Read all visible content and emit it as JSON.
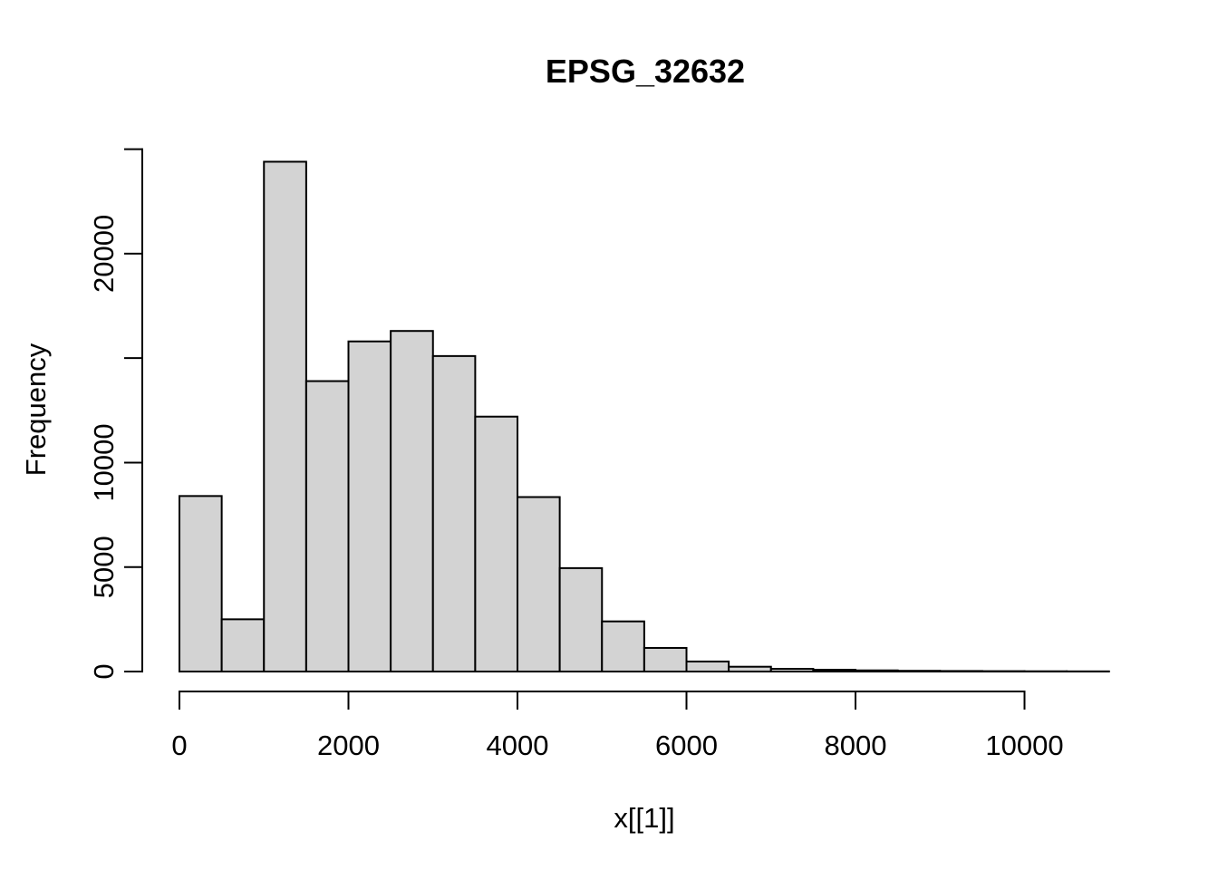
{
  "title": "EPSG_32632",
  "chart_data": {
    "type": "bar",
    "subtype": "histogram",
    "title": "EPSG_32632",
    "xlabel": "x[[1]]",
    "ylabel": "Frequency",
    "bin_start": 0,
    "bin_width": 500,
    "bins": [
      {
        "range": [
          0,
          500
        ],
        "count": 8400
      },
      {
        "range": [
          500,
          1000
        ],
        "count": 2500
      },
      {
        "range": [
          1000,
          1500
        ],
        "count": 24400
      },
      {
        "range": [
          1500,
          2000
        ],
        "count": 13900
      },
      {
        "range": [
          2000,
          2500
        ],
        "count": 15800
      },
      {
        "range": [
          2500,
          3000
        ],
        "count": 16300
      },
      {
        "range": [
          3000,
          3500
        ],
        "count": 15100
      },
      {
        "range": [
          3500,
          4000
        ],
        "count": 12200
      },
      {
        "range": [
          4000,
          4500
        ],
        "count": 8350
      },
      {
        "range": [
          4500,
          5000
        ],
        "count": 4950
      },
      {
        "range": [
          5000,
          5500
        ],
        "count": 2400
      },
      {
        "range": [
          5500,
          6000
        ],
        "count": 1130
      },
      {
        "range": [
          6000,
          6500
        ],
        "count": 480
      },
      {
        "range": [
          6500,
          7000
        ],
        "count": 230
      },
      {
        "range": [
          7000,
          7500
        ],
        "count": 130
      },
      {
        "range": [
          7500,
          8000
        ],
        "count": 85
      },
      {
        "range": [
          8000,
          8500
        ],
        "count": 55
      },
      {
        "range": [
          8500,
          9000
        ],
        "count": 35
      },
      {
        "range": [
          9000,
          9500
        ],
        "count": 25
      },
      {
        "range": [
          9500,
          10000
        ],
        "count": 18
      },
      {
        "range": [
          10000,
          10500
        ],
        "count": 12
      },
      {
        "range": [
          10500,
          11000
        ],
        "count": 8
      }
    ],
    "xlim": [
      0,
      11000
    ],
    "ylim": [
      0,
      25000
    ],
    "xticks": [
      {
        "value": 0,
        "label": "0"
      },
      {
        "value": 2000,
        "label": "2000"
      },
      {
        "value": 4000,
        "label": "4000"
      },
      {
        "value": 6000,
        "label": "6000"
      },
      {
        "value": 8000,
        "label": "8000"
      },
      {
        "value": 10000,
        "label": "10000"
      }
    ],
    "yticks": [
      {
        "value": 0,
        "label": "0"
      },
      {
        "value": 5000,
        "label": "5000"
      },
      {
        "value": 10000,
        "label": "10000"
      },
      {
        "value": 15000,
        "label": ""
      },
      {
        "value": 20000,
        "label": "20000"
      },
      {
        "value": 25000,
        "label": ""
      }
    ],
    "grid": false,
    "legend": false,
    "colors": {
      "bar_fill": "#d3d3d3",
      "bar_stroke": "#000000",
      "axis": "#000000",
      "text": "#000000",
      "background": "#ffffff"
    }
  }
}
